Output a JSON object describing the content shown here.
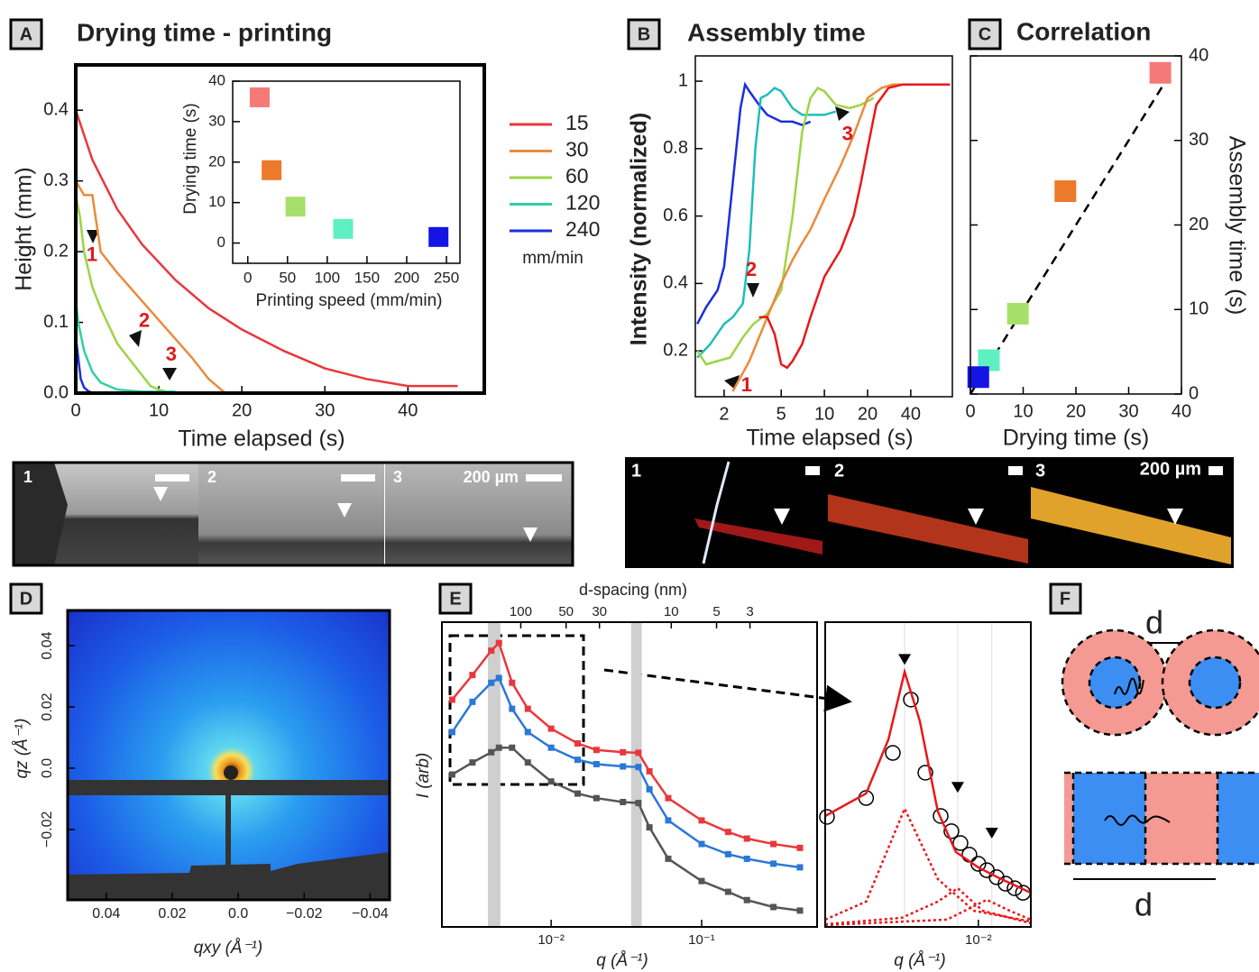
{
  "chart_data": [
    {
      "panel": "A",
      "type": "line",
      "title": "Drying time - printing",
      "xlabel": "Time elapsed (s)",
      "ylabel": "Height (mm)",
      "xlim": [
        0,
        49.2
      ],
      "xticks": [
        0,
        10,
        20,
        30,
        40
      ],
      "ylim": [
        0,
        0.464
      ],
      "yticks": [
        {
          "value": 0,
          "label": "0.0"
        },
        0.1,
        0.2,
        0.3,
        0.4
      ],
      "legend_title": "mm/min",
      "series": [
        {
          "name": "15",
          "color": "#e8383c",
          "x": [
            0,
            2,
            5,
            8,
            12,
            16,
            20,
            25,
            30,
            35,
            40,
            46
          ],
          "values": [
            0.4,
            0.33,
            0.26,
            0.21,
            0.16,
            0.12,
            0.09,
            0.06,
            0.035,
            0.02,
            0.01,
            0.01
          ]
        },
        {
          "name": "30",
          "color": "#ec8a3c",
          "x": [
            0,
            1,
            2,
            3,
            5,
            8,
            11,
            14,
            16,
            18
          ],
          "values": [
            0.3,
            0.28,
            0.28,
            0.2,
            0.17,
            0.13,
            0.09,
            0.05,
            0.02,
            0
          ]
        },
        {
          "name": "60",
          "color": "#9ed445",
          "x": [
            0,
            0.5,
            1,
            2,
            3,
            5,
            7,
            9,
            10,
            11
          ],
          "values": [
            0.28,
            0.25,
            0.2,
            0.15,
            0.12,
            0.07,
            0.04,
            0.01,
            0.005,
            0.002
          ]
        },
        {
          "name": "120",
          "color": "#2fd1a4",
          "x": [
            0,
            0.3,
            1,
            2,
            3,
            5,
            8,
            12
          ],
          "values": [
            0.13,
            0.1,
            0.06,
            0.03,
            0.015,
            0.005,
            0.002,
            0.002
          ]
        },
        {
          "name": "240",
          "color": "#1a2fe0",
          "x": [
            0,
            0.3,
            0.6,
            1,
            1.5,
            2,
            4
          ],
          "values": [
            0.08,
            0.05,
            0.02,
            0.008,
            0.003,
            0,
            0
          ]
        }
      ],
      "annotations": [
        {
          "text": "1",
          "x": 1.96,
          "y": 0.194
        },
        {
          "text": "2",
          "x": 8.26,
          "y": 0.101
        },
        {
          "text": "3",
          "x": 11.5,
          "y": 0.053
        }
      ]
    },
    {
      "type": "scatter",
      "xlabel": "Printing speed (mm/min)",
      "ylabel": "Drying time (s)",
      "xlim": [
        -19,
        267
      ],
      "xticks": [
        0,
        50,
        100,
        150,
        200,
        250
      ],
      "ylim": [
        -5,
        40
      ],
      "yticks": [
        0,
        10,
        20,
        30,
        40
      ],
      "x": [
        15,
        30,
        60,
        120,
        240
      ],
      "values": [
        36,
        18,
        9,
        3.5,
        1.5
      ],
      "colors": [
        "#f47a78",
        "#ec7a2a",
        "#a6e06a",
        "#5ef0c0",
        "#1414e6"
      ]
    },
    {
      "panel": "B",
      "type": "line",
      "title": "Assembly time",
      "xlabel": "Time elapsed (s)",
      "ylabel": "Intensity (normalized)",
      "xscale": "log",
      "xlim": [
        1.26,
        78
      ],
      "xticks": [
        2,
        5,
        10,
        20,
        40
      ],
      "ylim": [
        0.064,
        1.075
      ],
      "yticks": [
        0.2,
        0.4,
        0.6,
        0.8,
        1
      ],
      "series": [
        {
          "color": "#1a2fe0",
          "x": [
            1.3,
            1.5,
            1.8,
            2,
            2.3,
            2.6,
            2.8,
            3,
            3.5,
            4,
            5,
            6,
            7,
            8
          ],
          "values": [
            0.28,
            0.33,
            0.38,
            0.45,
            0.7,
            0.92,
            0.99,
            0.97,
            0.93,
            0.9,
            0.88,
            0.88,
            0.87,
            0.88
          ]
        },
        {
          "color": "#1fbfb8",
          "x": [
            1.3,
            1.6,
            2,
            2.3,
            2.7,
            3,
            3.3,
            3.6,
            4,
            4.5,
            5,
            6,
            7,
            8,
            10,
            12
          ],
          "values": [
            0.18,
            0.22,
            0.28,
            0.3,
            0.34,
            0.5,
            0.8,
            0.95,
            0.96,
            0.98,
            0.97,
            0.92,
            0.9,
            0.9,
            0.9,
            0.91
          ]
        },
        {
          "color": "#9ed445",
          "x": [
            1.3,
            1.5,
            1.8,
            2.2,
            2.7,
            3.2,
            4,
            5,
            6,
            7,
            8,
            9,
            10,
            12,
            15,
            18,
            22
          ],
          "values": [
            0.2,
            0.16,
            0.17,
            0.18,
            0.24,
            0.28,
            0.31,
            0.38,
            0.6,
            0.85,
            0.95,
            0.98,
            0.97,
            0.93,
            0.92,
            0.93,
            0.95
          ]
        },
        {
          "color": "#ec8a3c",
          "x": [
            2.3,
            3,
            4,
            5,
            6,
            7,
            8,
            10,
            13,
            16,
            20,
            25,
            30,
            40,
            60,
            75
          ],
          "values": [
            0.08,
            0.17,
            0.3,
            0.4,
            0.47,
            0.52,
            0.56,
            0.65,
            0.75,
            0.84,
            0.95,
            0.98,
            0.99,
            0.99,
            0.99,
            0.99
          ]
        },
        {
          "color": "#e8181c",
          "x": [
            3.5,
            4,
            4.5,
            5,
            5.5,
            6,
            7,
            8,
            10,
            13,
            16,
            18,
            20,
            23,
            28,
            35,
            50,
            75
          ],
          "values": [
            0.3,
            0.3,
            0.25,
            0.16,
            0.15,
            0.17,
            0.22,
            0.3,
            0.42,
            0.5,
            0.6,
            0.7,
            0.8,
            0.93,
            0.98,
            0.99,
            0.99,
            0.99
          ]
        }
      ],
      "annotations": [
        {
          "text": "1",
          "x": 2.87,
          "y": 0.096
        },
        {
          "text": "2",
          "x": 3.09,
          "y": 0.438
        },
        {
          "text": "3",
          "x": 14.5,
          "y": 0.84
        }
      ]
    },
    {
      "panel": "C",
      "type": "scatter",
      "title": "Correlation",
      "xlabel": "Drying time (s)",
      "ylabel": "Assembly time (s)",
      "xlim": [
        0,
        40
      ],
      "xticks": [
        0,
        10,
        20,
        30,
        40
      ],
      "ylim": [
        0,
        40
      ],
      "yticks": [
        0,
        10,
        20,
        30,
        40
      ],
      "x": [
        36,
        18,
        9,
        3.5,
        1.5
      ],
      "values": [
        38,
        24,
        9.5,
        4,
        2
      ],
      "colors": [
        "#f47a78",
        "#ec7a2a",
        "#a6e06a",
        "#5ef0c0",
        "#1414e6"
      ],
      "fit": {
        "x": [
          0,
          38
        ],
        "values": [
          0,
          38
        ]
      }
    },
    {
      "panel": "D",
      "type": "heatmap",
      "xlabel": "qxy (Å⁻¹)",
      "ylabel": "qz (Å⁻¹)",
      "xlim": [
        0.0517,
        -0.0459
      ],
      "xticks": [
        0.04,
        0.02,
        {
          "value": 0,
          "label": "0.0"
        },
        {
          "value": -0.02,
          "label": "−0.02"
        },
        {
          "value": -0.04,
          "label": "−0.04"
        }
      ],
      "ylim": [
        -0.043,
        0.0515
      ],
      "yticks": [
        0.04,
        0.02,
        {
          "value": 0,
          "label": "0.0"
        },
        {
          "value": -0.02,
          "label": "−0.02"
        }
      ]
    },
    {
      "panel": "E",
      "type": "line",
      "xlabel": "q (Å⁻¹)",
      "ylabel": "I (arb)",
      "xscale": "log",
      "yscale": "log",
      "xlim": [
        0.00188,
        0.585
      ],
      "ylim": [
        1,
        100
      ],
      "xticks": [
        {
          "value": 0.01,
          "label": "10⁻²"
        },
        {
          "value": 0.1,
          "label": "10⁻¹"
        }
      ],
      "top_axis": {
        "label": "d-spacing (nm)",
        "ticks": [
          100,
          50,
          30,
          10,
          5,
          3
        ]
      },
      "bands": [
        [
          0.0038,
          0.0046
        ],
        [
          0.034,
          0.04
        ]
      ],
      "series": [
        {
          "color": "#e8383c",
          "style": "markers",
          "x": [
            0.0022,
            0.003,
            0.004,
            0.0045,
            0.0055,
            0.007,
            0.01,
            0.015,
            0.02,
            0.03,
            0.038,
            0.045,
            0.06,
            0.1,
            0.15,
            0.2,
            0.3,
            0.45
          ],
          "values": [
            31,
            45,
            65,
            73,
            40,
            27,
            20,
            16,
            14.5,
            14,
            13.9,
            10.5,
            7,
            5,
            4.2,
            3.8,
            3.5,
            3.3
          ]
        },
        {
          "color": "#2a78d8",
          "style": "markers",
          "x": [
            0.0022,
            0.003,
            0.004,
            0.0045,
            0.0055,
            0.007,
            0.01,
            0.015,
            0.02,
            0.03,
            0.038,
            0.045,
            0.06,
            0.1,
            0.15,
            0.2,
            0.3,
            0.45
          ],
          "values": [
            19,
            30,
            40,
            43,
            27,
            19,
            15,
            12.5,
            11.7,
            11.3,
            11.2,
            8,
            5,
            3.5,
            3,
            2.8,
            2.6,
            2.46
          ]
        },
        {
          "color": "#555555",
          "style": "markers",
          "x": [
            0.0022,
            0.003,
            0.004,
            0.0045,
            0.0055,
            0.007,
            0.01,
            0.015,
            0.02,
            0.03,
            0.038,
            0.045,
            0.06,
            0.1,
            0.15,
            0.2,
            0.3,
            0.45
          ],
          "values": [
            10,
            12,
            14,
            15,
            15,
            12,
            9,
            7.5,
            7,
            6.6,
            6.5,
            4.5,
            2.8,
            2,
            1.7,
            1.5,
            1.35,
            1.28
          ]
        }
      ]
    },
    {
      "type": "line",
      "xlabel": "q (Å⁻¹)",
      "xscale": "log",
      "xlim": [
        0.00249,
        0.0161
      ],
      "ylim": [
        0,
        1
      ],
      "xticks": [
        {
          "value": 0.01,
          "label": "10⁻²"
        }
      ],
      "peak_markers": {
        "x": [
          0.00512,
          0.00829,
          0.0113
        ],
        "y": [
          0.86,
          0.44,
          0.29
        ]
      },
      "series": [
        {
          "color": "#000000",
          "style": "circles",
          "x": [
            0.00253,
            0.00361,
            0.0046,
            0.00542,
            0.00618,
            0.0071,
            0.00783,
            0.0085,
            0.00922,
            0.01,
            0.0108,
            0.0118,
            0.0128,
            0.0139,
            0.015
          ],
          "values": [
            0.361,
            0.423,
            0.571,
            0.746,
            0.506,
            0.364,
            0.314,
            0.275,
            0.237,
            0.207,
            0.186,
            0.163,
            0.142,
            0.127,
            0.112
          ]
        },
        {
          "color": "#e8181c",
          "style": "solid",
          "x": [
            0.00249,
            0.00361,
            0.00442,
            0.00512,
            0.00588,
            0.00692,
            0.00815,
            0.01,
            0.0123,
            0.0161
          ],
          "values": [
            0.364,
            0.438,
            0.615,
            0.837,
            0.675,
            0.379,
            0.246,
            0.195,
            0.157,
            0.112
          ]
        },
        {
          "color": "#e8181c",
          "style": "dotted",
          "x": [
            0.00249,
            0.00361,
            0.00512,
            0.00692,
            0.0096,
            0.0161
          ],
          "values": [
            0.024,
            0.083,
            0.388,
            0.157,
            0.053,
            0.018
          ]
        },
        {
          "color": "#e8181c",
          "style": "dotted",
          "x": [
            0.00249,
            0.00499,
            0.00692,
            0.00829,
            0.0104,
            0.0161
          ],
          "values": [
            0.009,
            0.03,
            0.083,
            0.127,
            0.053,
            0.012
          ]
        },
        {
          "color": "#e8181c",
          "style": "dotted",
          "x": [
            0.00249,
            0.00752,
            0.0108,
            0.0133,
            0.0161
          ],
          "values": [
            0.006,
            0.024,
            0.089,
            0.053,
            0.024
          ]
        }
      ]
    }
  ],
  "micrographs": [
    {
      "labels": [
        "1",
        "2",
        "3"
      ],
      "scale": "200 µm"
    },
    {
      "labels": [
        "1",
        "2",
        "3"
      ],
      "scale": "200 µm"
    }
  ],
  "diagram": {
    "panel": "F",
    "labels": [
      "d",
      "d"
    ]
  }
}
